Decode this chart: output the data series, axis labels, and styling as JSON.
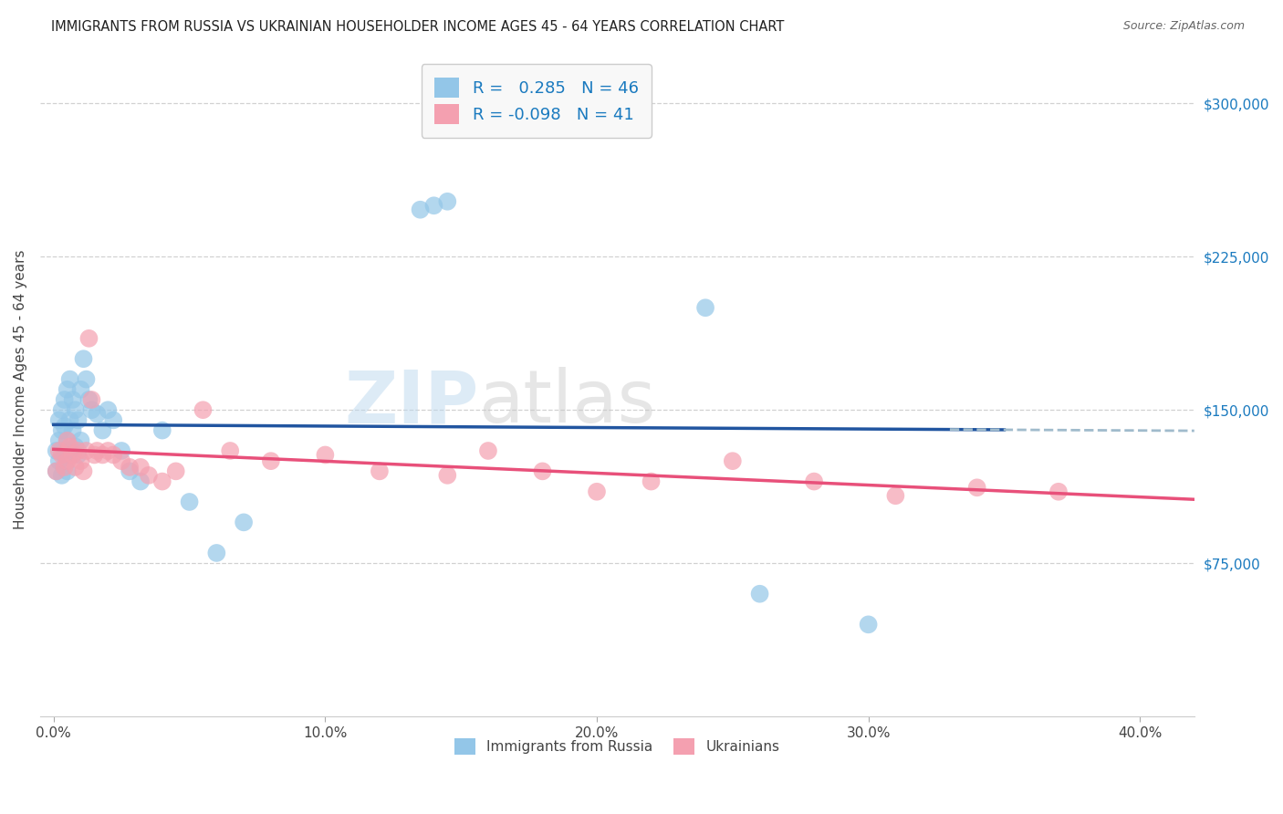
{
  "title": "IMMIGRANTS FROM RUSSIA VS UKRAINIAN HOUSEHOLDER INCOME AGES 45 - 64 YEARS CORRELATION CHART",
  "source": "Source: ZipAtlas.com",
  "ylabel": "Householder Income Ages 45 - 64 years",
  "xlabel_ticks": [
    "0.0%",
    "10.0%",
    "20.0%",
    "30.0%",
    "40.0%"
  ],
  "xlabel_vals": [
    0.0,
    0.1,
    0.2,
    0.3,
    0.4
  ],
  "ylabel_ticks": [
    "$75,000",
    "$150,000",
    "$225,000",
    "$300,000"
  ],
  "ylabel_vals": [
    75000,
    150000,
    225000,
    300000
  ],
  "ylim": [
    0,
    320000
  ],
  "xlim": [
    -0.005,
    0.42
  ],
  "russia_R": 0.285,
  "russia_N": 46,
  "ukraine_R": -0.098,
  "ukraine_N": 41,
  "russia_color": "#93C6E8",
  "ukraine_color": "#F4A0B0",
  "russia_line_color": "#2155A0",
  "ukraine_line_color": "#E8507A",
  "dashed_line_color": "#A0BBCC",
  "watermark_zip": "ZIP",
  "watermark_atlas": "atlas",
  "legend_box_color": "#F8F8F8",
  "legend_box_edge": "#CCCCCC",
  "grid_color": "#CCCCCC",
  "background_color": "#FFFFFF",
  "russia_x": [
    0.001,
    0.001,
    0.002,
    0.002,
    0.002,
    0.003,
    0.003,
    0.003,
    0.004,
    0.004,
    0.004,
    0.005,
    0.005,
    0.005,
    0.006,
    0.006,
    0.006,
    0.007,
    0.007,
    0.008,
    0.008,
    0.009,
    0.009,
    0.01,
    0.01,
    0.011,
    0.012,
    0.013,
    0.014,
    0.016,
    0.018,
    0.02,
    0.022,
    0.025,
    0.028,
    0.032,
    0.04,
    0.05,
    0.06,
    0.07,
    0.135,
    0.14,
    0.145,
    0.24,
    0.26,
    0.3
  ],
  "russia_y": [
    130000,
    120000,
    145000,
    135000,
    125000,
    150000,
    140000,
    118000,
    155000,
    142000,
    128000,
    160000,
    135000,
    120000,
    165000,
    145000,
    130000,
    155000,
    140000,
    150000,
    132000,
    145000,
    128000,
    160000,
    135000,
    175000,
    165000,
    155000,
    150000,
    148000,
    140000,
    150000,
    145000,
    130000,
    120000,
    115000,
    140000,
    105000,
    80000,
    95000,
    248000,
    250000,
    252000,
    200000,
    60000,
    45000
  ],
  "ukraine_x": [
    0.001,
    0.002,
    0.003,
    0.004,
    0.005,
    0.005,
    0.006,
    0.007,
    0.008,
    0.009,
    0.01,
    0.011,
    0.012,
    0.013,
    0.014,
    0.015,
    0.016,
    0.018,
    0.02,
    0.022,
    0.025,
    0.028,
    0.032,
    0.035,
    0.04,
    0.045,
    0.055,
    0.065,
    0.08,
    0.1,
    0.12,
    0.145,
    0.16,
    0.18,
    0.2,
    0.22,
    0.25,
    0.28,
    0.31,
    0.34,
    0.37
  ],
  "ukraine_y": [
    120000,
    130000,
    128000,
    122000,
    135000,
    125000,
    132000,
    128000,
    122000,
    130000,
    125000,
    120000,
    130000,
    185000,
    155000,
    128000,
    130000,
    128000,
    130000,
    128000,
    125000,
    122000,
    122000,
    118000,
    115000,
    120000,
    150000,
    130000,
    125000,
    128000,
    120000,
    118000,
    130000,
    120000,
    110000,
    115000,
    125000,
    115000,
    108000,
    112000,
    110000
  ]
}
